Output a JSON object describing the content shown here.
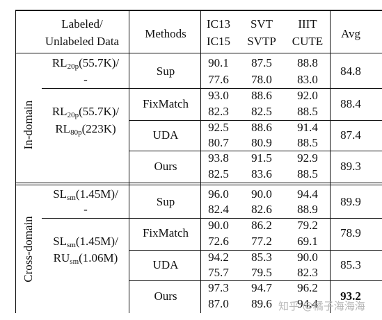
{
  "header": {
    "labeled_line1": "Labeled/",
    "labeled_line2": "Unlabeled Data",
    "methods": "Methods",
    "col1_line1": "IC13",
    "col1_line2": "IC15",
    "col2_line1": "SVT",
    "col2_line2": "SVTP",
    "col3_line1": "IIIT",
    "col3_line2": "CUTE",
    "avg": "Avg"
  },
  "sections": [
    {
      "name": "In-domain",
      "data_groups": [
        {
          "line1_base": "RL",
          "line1_sub": "20p",
          "line1_rest": "(55.7K)/",
          "line2": "-",
          "rows": [
            {
              "method": "Sup",
              "c1": [
                "90.1",
                "77.6"
              ],
              "c2": [
                "87.5",
                "78.0"
              ],
              "c3": [
                "88.8",
                "83.0"
              ],
              "avg": "84.8"
            }
          ]
        },
        {
          "line1_base": "RL",
          "line1_sub": "20p",
          "line1_rest": "(55.7K)/",
          "line2_base": "RL",
          "line2_sub": "80p",
          "line2_rest": "(223K)",
          "rows": [
            {
              "method": "FixMatch",
              "c1": [
                "93.0",
                "82.3"
              ],
              "c2": [
                "88.6",
                "82.5"
              ],
              "c3": [
                "92.0",
                "88.5"
              ],
              "avg": "88.4"
            },
            {
              "method": "UDA",
              "c1": [
                "92.5",
                "80.7"
              ],
              "c2": [
                "88.6",
                "80.9"
              ],
              "c3": [
                "91.4",
                "88.5"
              ],
              "avg": "87.4"
            },
            {
              "method": "Ours",
              "c1": [
                "93.8",
                "82.5"
              ],
              "c2": [
                "91.5",
                "83.6"
              ],
              "c3": [
                "92.9",
                "88.5"
              ],
              "avg": "89.3"
            }
          ]
        }
      ]
    },
    {
      "name": "Cross-domain",
      "data_groups": [
        {
          "line1_base": "SL",
          "line1_sub": "sm",
          "line1_rest": "(1.45M)/",
          "line2": "-",
          "rows": [
            {
              "method": "Sup",
              "c1": [
                "96.0",
                "82.4"
              ],
              "c2": [
                "90.0",
                "82.6"
              ],
              "c3": [
                "94.4",
                "88.9"
              ],
              "avg": "89.9"
            }
          ]
        },
        {
          "line1_base": "SL",
          "line1_sub": "sm",
          "line1_rest": "(1.45M)/",
          "line2_base": "RU",
          "line2_sub": "sm",
          "line2_rest": "(1.06M)",
          "rows": [
            {
              "method": "FixMatch",
              "c1": [
                "90.0",
                "72.6"
              ],
              "c2": [
                "86.2",
                "77.2"
              ],
              "c3": [
                "79.2",
                "69.1"
              ],
              "avg": "78.9"
            },
            {
              "method": "UDA",
              "c1": [
                "94.2",
                "75.7"
              ],
              "c2": [
                "85.3",
                "79.5"
              ],
              "c3": [
                "90.0",
                "82.3"
              ],
              "avg": "85.3"
            },
            {
              "method": "Ours",
              "c1": [
                "97.3",
                "87.0"
              ],
              "c2": [
                "94.7",
                "89.6"
              ],
              "c3": [
                "96.2",
                "94.4"
              ],
              "avg": "93.2"
            }
          ]
        }
      ]
    }
  ],
  "watermark": "知乎 @橘子海海海"
}
